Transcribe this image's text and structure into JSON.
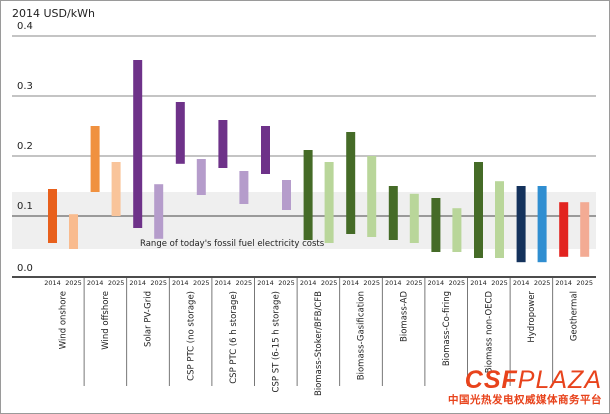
{
  "chart_data": {
    "type": "bar",
    "subtype": "floating-range",
    "ylabel": "2014 USD/kWh",
    "ylim": [
      0,
      0.4
    ],
    "yticks": [
      "0.0",
      "0.1",
      "0.2",
      "0.3",
      "0.4"
    ],
    "grid": true,
    "period_labels": [
      "2014",
      "2025"
    ],
    "band": {
      "label": "Range of today's fossil fuel electricity costs",
      "low": 0.045,
      "high": 0.14,
      "color": "#efefef"
    },
    "categories": [
      {
        "name": "Wind onshore",
        "colors": [
          "#e8601c",
          "#f9bb8e"
        ],
        "v2014": [
          0.055,
          0.145
        ],
        "v2025": [
          0.045,
          0.103
        ]
      },
      {
        "name": "Wind offshore",
        "colors": [
          "#f0913f",
          "#f9c49a"
        ],
        "v2014": [
          0.14,
          0.25
        ],
        "v2025": [
          0.1,
          0.19
        ]
      },
      {
        "name": "Solar PV-Grid",
        "colors": [
          "#6e3289",
          "#b59ccb"
        ],
        "v2014": [
          0.08,
          0.36
        ],
        "v2025": [
          0.062,
          0.153
        ]
      },
      {
        "name": "CSP PTC (no storage)",
        "colors": [
          "#6e3289",
          "#b59ccb"
        ],
        "v2014": [
          0.187,
          0.29
        ],
        "v2025": [
          0.135,
          0.195
        ]
      },
      {
        "name": "CSP PTC (6 h storage)",
        "colors": [
          "#6e3289",
          "#b59ccb"
        ],
        "v2014": [
          0.18,
          0.26
        ],
        "v2025": [
          0.12,
          0.175
        ]
      },
      {
        "name": "CSP ST (6-15 h storage)",
        "colors": [
          "#6e3289",
          "#b59ccb"
        ],
        "v2014": [
          0.17,
          0.25
        ],
        "v2025": [
          0.11,
          0.16
        ]
      },
      {
        "name": "Biomass-Stoker/BFB/CFB",
        "colors": [
          "#456b27",
          "#b9d69a"
        ],
        "v2014": [
          0.06,
          0.21
        ],
        "v2025": [
          0.055,
          0.19
        ]
      },
      {
        "name": "Biomass-Gasification",
        "colors": [
          "#456b27",
          "#b9d69a"
        ],
        "v2014": [
          0.07,
          0.24
        ],
        "v2025": [
          0.065,
          0.2
        ]
      },
      {
        "name": "Biomass-AD",
        "colors": [
          "#456b27",
          "#b9d69a"
        ],
        "v2014": [
          0.06,
          0.15
        ],
        "v2025": [
          0.055,
          0.137
        ]
      },
      {
        "name": "Biomass-Co-firing",
        "colors": [
          "#456b27",
          "#b9d69a"
        ],
        "v2014": [
          0.04,
          0.13
        ],
        "v2025": [
          0.04,
          0.113
        ]
      },
      {
        "name": "Biomass non-OECD",
        "colors": [
          "#456b27",
          "#b9d69a"
        ],
        "v2014": [
          0.03,
          0.19
        ],
        "v2025": [
          0.03,
          0.158
        ]
      },
      {
        "name": "Hydropower",
        "colors": [
          "#14325c",
          "#2f8ed1"
        ],
        "v2014": [
          0.023,
          0.15
        ],
        "v2025": [
          0.023,
          0.15
        ]
      },
      {
        "name": "Geothermal",
        "colors": [
          "#e2231f",
          "#f3ab94"
        ],
        "v2014": [
          0.032,
          0.123
        ],
        "v2025": [
          0.032,
          0.123
        ]
      }
    ]
  },
  "logo": {
    "brand_a": "CSF",
    "brand_b": "PLAZA",
    "tagline": "中国光热发电权威媒体商务平台"
  }
}
